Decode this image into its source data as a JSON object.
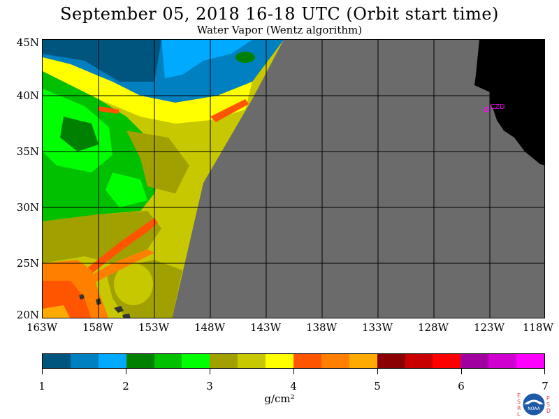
{
  "title": "September 05, 2018  16-18 UTC  (Orbit start time)",
  "subtitle": "Water Vapor (Wentz algorithm)",
  "map": {
    "lat_labels": [
      "45N",
      "40N",
      "35N",
      "30N",
      "25N",
      "20N"
    ],
    "lon_labels": [
      "163W",
      "158W",
      "153W",
      "148W",
      "143W",
      "138W",
      "133W",
      "128W",
      "123W",
      "118W"
    ],
    "station_label": "CZD",
    "colors": {
      "no_data": "#6b6b6b",
      "land": "#000000",
      "station": "#ff00ff"
    }
  },
  "colorbar": {
    "colors": [
      "#00557f",
      "#0080c0",
      "#00aaff",
      "#008000",
      "#00c000",
      "#00ff00",
      "#a0a000",
      "#c8c800",
      "#ffff00",
      "#ff5500",
      "#ff8000",
      "#ffaa00",
      "#8b0000",
      "#c80000",
      "#ff0000",
      "#a000a0",
      "#d000d0",
      "#ff00ff"
    ],
    "ticks": [
      "1",
      "2",
      "3",
      "4",
      "5",
      "6",
      "7"
    ],
    "units": "g/cm²"
  },
  "logo": {
    "left_letters": [
      "E",
      "S",
      "R",
      "L"
    ],
    "right_letters": [
      "P",
      "S",
      "D"
    ],
    "center_text": "NOAA"
  }
}
